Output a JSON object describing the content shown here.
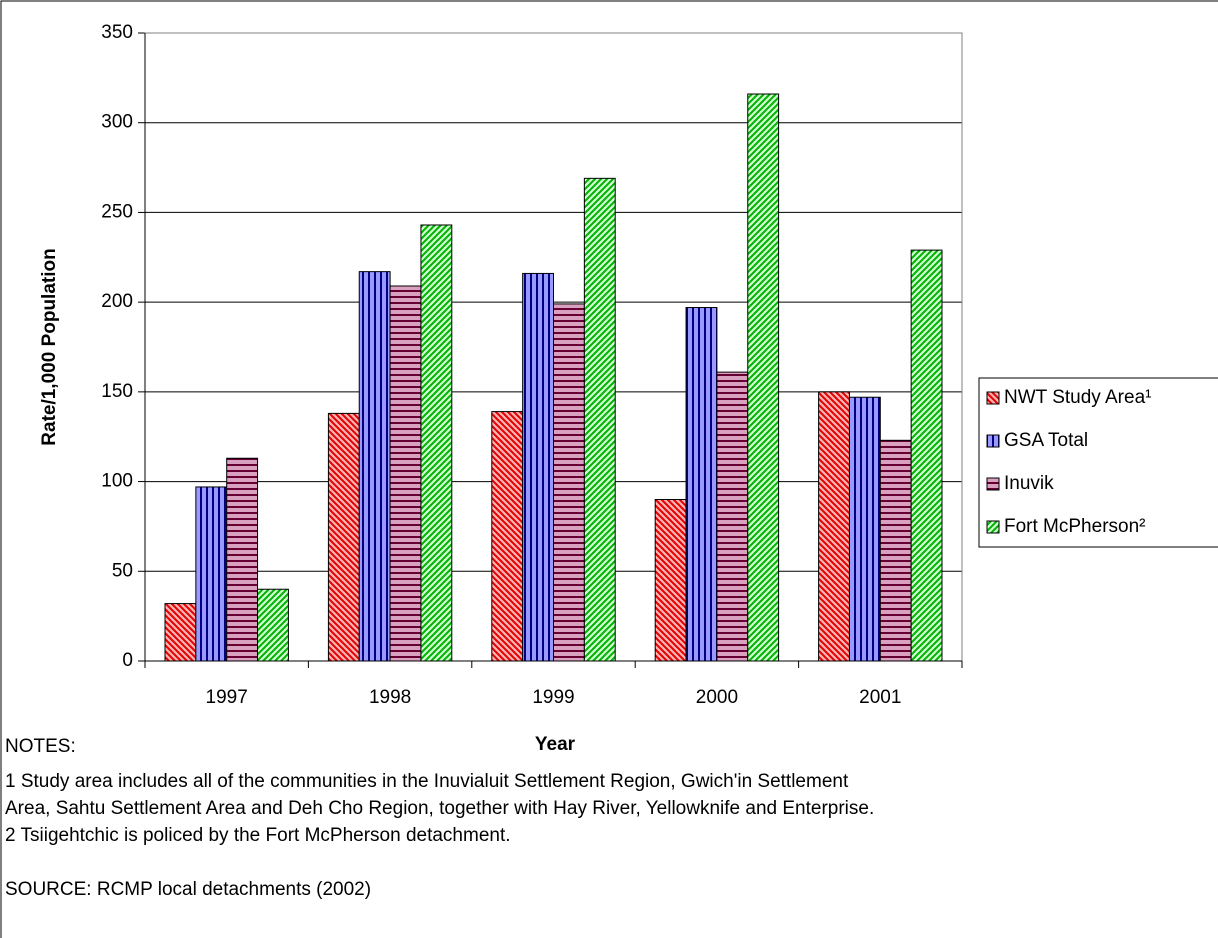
{
  "chart_data": {
    "type": "bar",
    "y_label": "Rate/1,000 Population",
    "x_label": "Year",
    "categories": [
      "1997",
      "1998",
      "1999",
      "2000",
      "2001"
    ],
    "series": [
      {
        "name": "NWT Study Area¹",
        "color": "#ffb0b0",
        "hatch_color": "#e00000",
        "hatch": "diagonal-down",
        "values": [
          32,
          138,
          139,
          90,
          150
        ]
      },
      {
        "name": "GSA Total",
        "color": "#9999ff",
        "hatch_color": "#000080",
        "hatch": "vertical",
        "values": [
          97,
          217,
          216,
          197,
          147
        ]
      },
      {
        "name": "Inuvik",
        "color": "#d9a0c0",
        "hatch_color": "#660033",
        "hatch": "horizontal",
        "values": [
          113,
          209,
          199,
          161,
          123
        ]
      },
      {
        "name": "Fort McPherson²",
        "color": "#ccffcc",
        "hatch_color": "#00b000",
        "hatch": "diagonal-up",
        "values": [
          40,
          243,
          269,
          316,
          229
        ]
      }
    ],
    "ylim": [
      0,
      350
    ],
    "yticks": [
      0,
      50,
      100,
      150,
      200,
      250,
      300,
      350
    ],
    "grid": true,
    "legend": "right",
    "notes_title": "NOTES:",
    "notes": [
      "1  Study area includes all of the communities in the Inuvialuit Settlement Region, Gwich'in Settlement",
      "Area, Sahtu Settlement Area and Deh Cho Region, together with Hay River, Yellowknife and Enterprise.",
      "2  Tsiigehtchic is policed by the Fort McPherson detachment."
    ],
    "source": "SOURCE:  RCMP local detachments (2002)"
  }
}
